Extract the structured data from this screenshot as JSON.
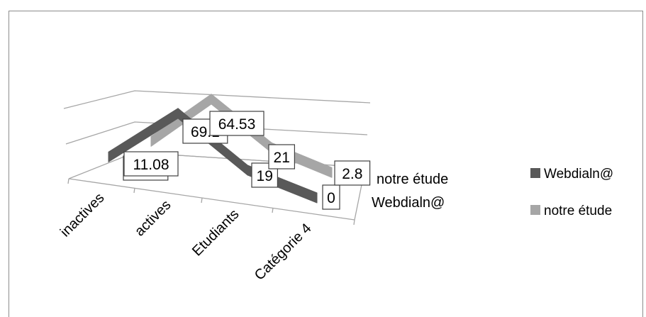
{
  "chart_data": {
    "type": "line",
    "categories": [
      "inactives",
      "actives",
      "Etudiants",
      "Catégorie 4"
    ],
    "series": [
      {
        "name": "Webdialn@",
        "values": [
          11.9,
          69.1,
          19,
          0
        ],
        "labels": [
          "11.9",
          "69.1",
          "19",
          "0"
        ]
      },
      {
        "name": "notre étude",
        "values": [
          11.08,
          64.53,
          21,
          2.8
        ],
        "labels": [
          "11.08",
          "64.53",
          "21",
          "2.8"
        ]
      }
    ],
    "depth_axis_labels": [
      "notre étude",
      "Webdialn@"
    ],
    "legend_position": "right",
    "grid": true,
    "colors": {
      "Webdialn@": "#595959",
      "notre étude": "#a6a6a6"
    }
  }
}
